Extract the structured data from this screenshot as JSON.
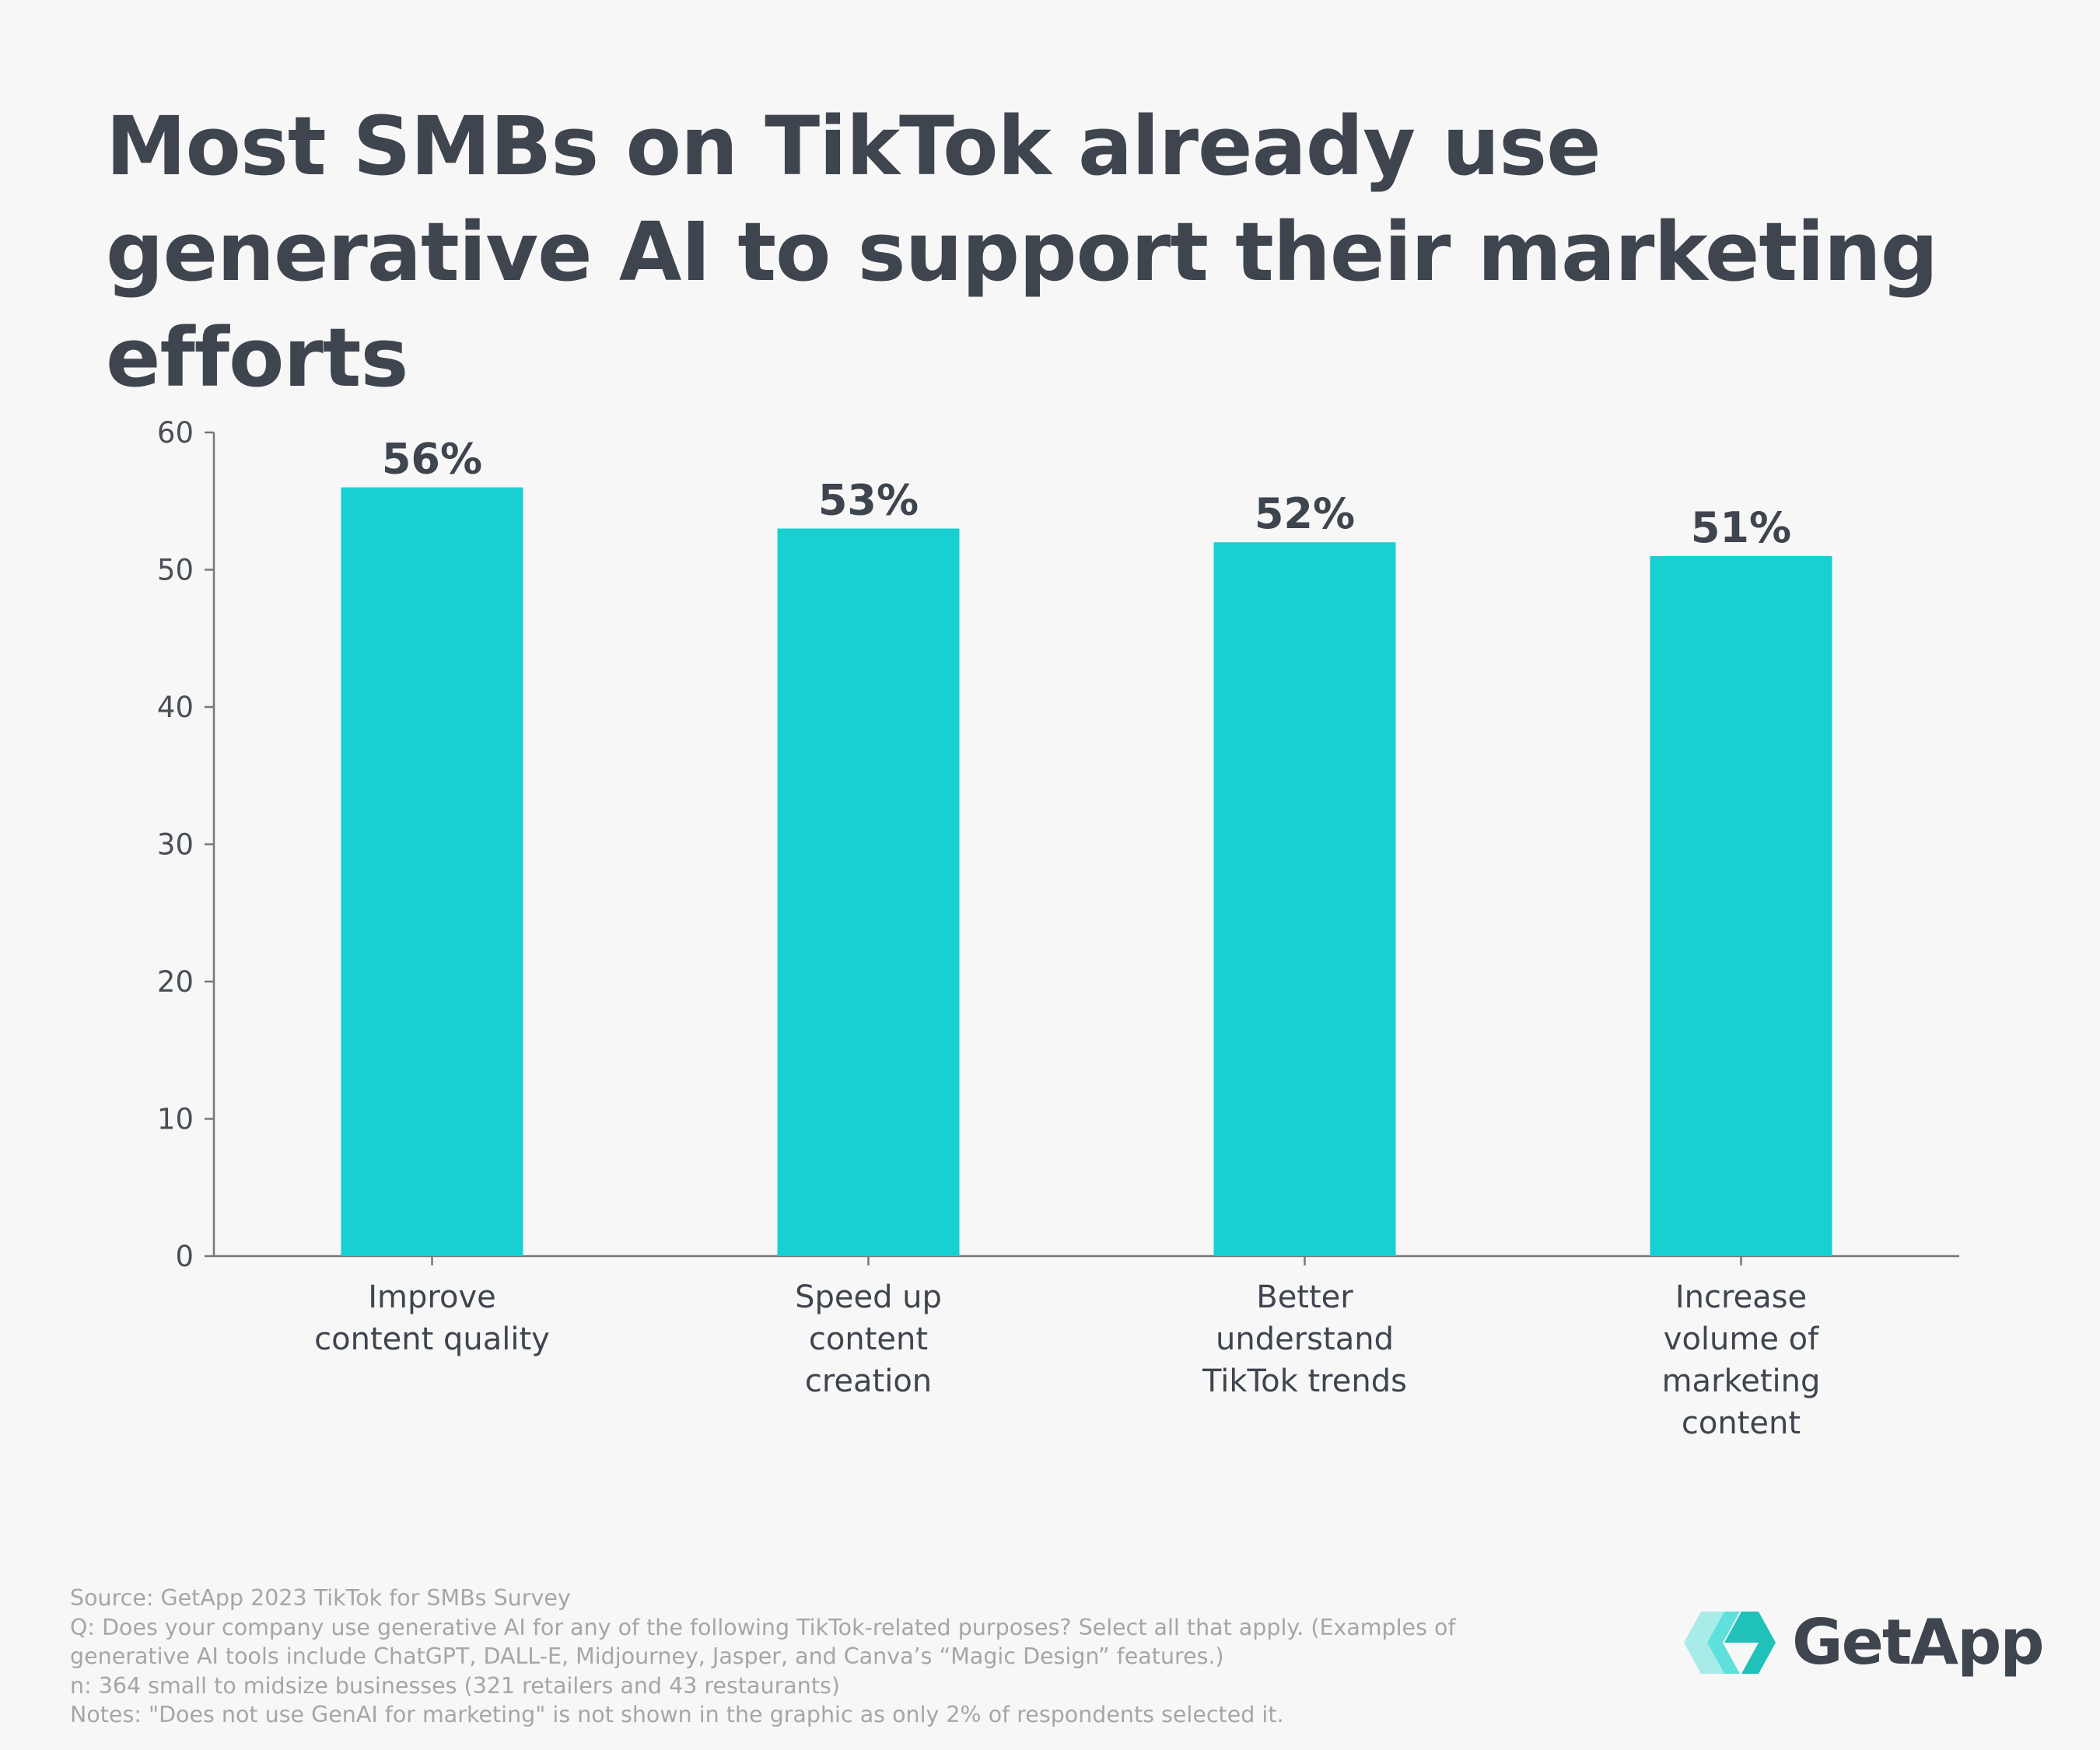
{
  "title": "Most SMBs on TikTok already use generative AI to support their marketing efforts",
  "chart_data": {
    "type": "bar",
    "categories": [
      [
        "Improve",
        "content quality"
      ],
      [
        "Speed up",
        "content",
        "creation"
      ],
      [
        "Better",
        "understand",
        "TikTok trends"
      ],
      [
        "Increase",
        "volume of",
        "marketing",
        "content"
      ]
    ],
    "values": [
      56,
      53,
      52,
      51
    ],
    "data_labels": [
      "56%",
      "53%",
      "52%",
      "51%"
    ],
    "ylim": [
      0,
      60
    ],
    "yticks": [
      0,
      10,
      20,
      30,
      40,
      50,
      60
    ],
    "grid": false,
    "bar_color": "#18cfd1",
    "xlabel": "",
    "ylabel": ""
  },
  "footer": {
    "lines": [
      "Source: GetApp 2023 TikTok for SMBs Survey",
      "Q: Does your company use generative AI for any of the following TikTok-related purposes? Select all that apply. (Examples of",
      "generative AI tools include ChatGPT, DALL-E, Midjourney, Jasper, and Canva’s “Magic Design” features.)",
      "n: 364 small to midsize businesses (321 retailers and 43 restaurants)",
      "Notes: \"Does not use GenAI for marketing\" is not shown in the graphic as only 2% of respondents selected it."
    ]
  },
  "logo": {
    "text": "GetApp",
    "icon": "getapp-chevrons-icon",
    "colors": [
      "#a8ece9",
      "#5fe0dc",
      "#20c1b9"
    ]
  }
}
